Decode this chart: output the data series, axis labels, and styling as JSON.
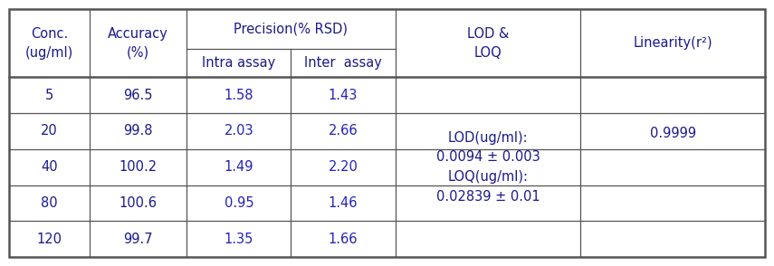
{
  "data_rows": [
    [
      "5",
      "96.5",
      "1.58",
      "1.43"
    ],
    [
      "20",
      "99.8",
      "2.03",
      "2.66"
    ],
    [
      "40",
      "100.2",
      "1.49",
      "2.20"
    ],
    [
      "80",
      "100.6",
      "0.95",
      "1.46"
    ],
    [
      "120",
      "99.7",
      "1.35",
      "1.66"
    ]
  ],
  "lod_loq_text": "LOD(ug/ml):\n0.0094 ± 0.003\nLOQ(ug/ml):\n0.02839 ± 0.01",
  "linearity_text": "0.9999",
  "header_color": "#1a1a8c",
  "data_color": "#2222bb",
  "bg_color": "#ffffff",
  "border_color": "#555555",
  "fs_header": 10.5,
  "fs_data": 10.5
}
